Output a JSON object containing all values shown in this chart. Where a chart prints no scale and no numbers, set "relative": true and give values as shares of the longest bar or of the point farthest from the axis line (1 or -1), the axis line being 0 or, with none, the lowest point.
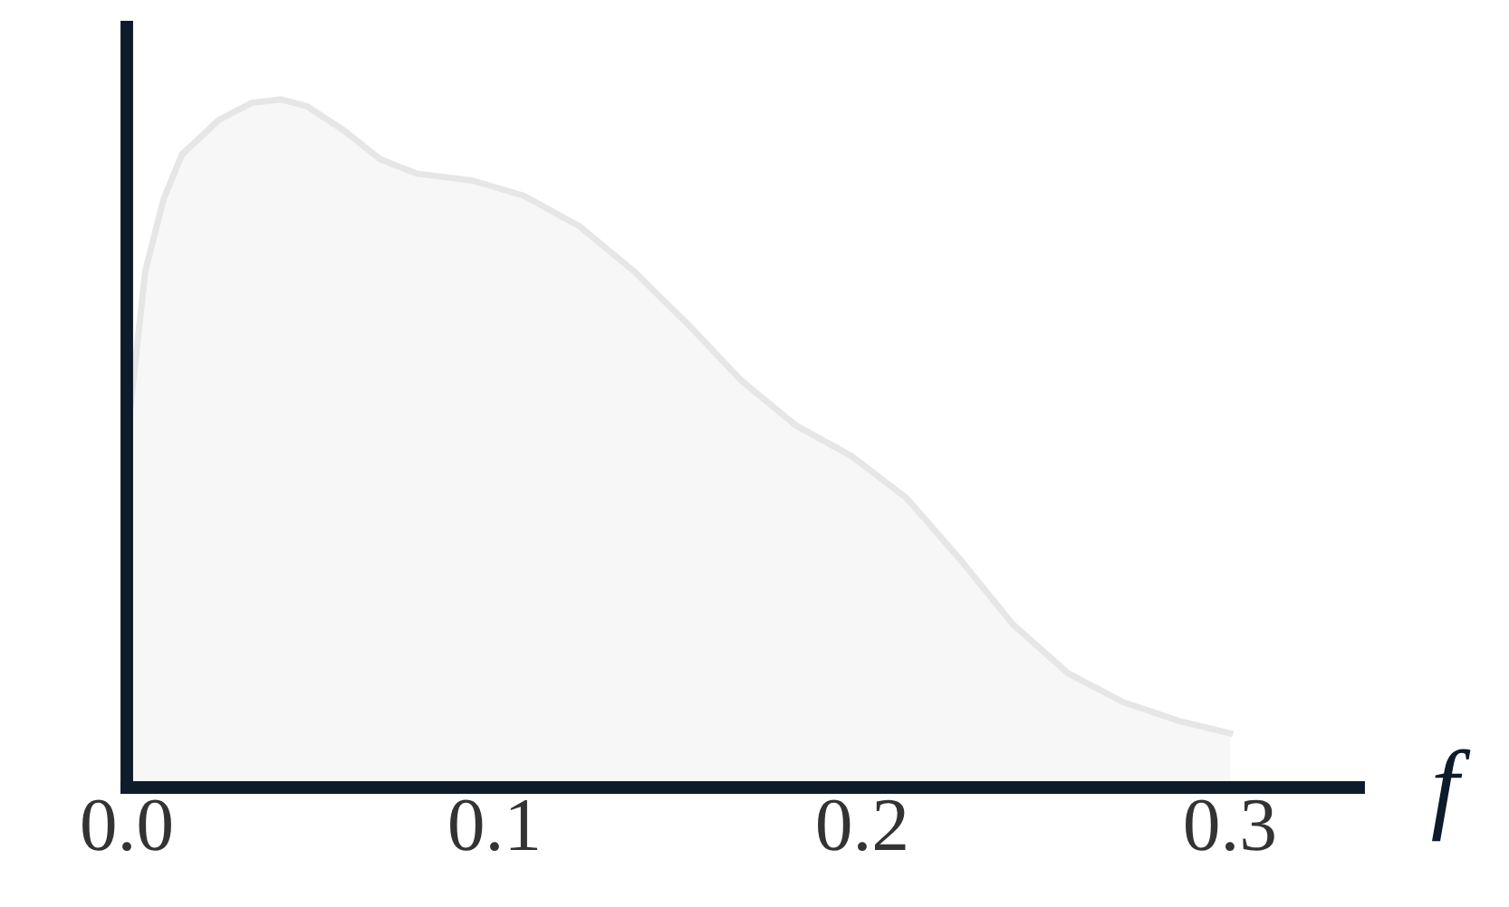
{
  "chart_data": {
    "type": "area",
    "relative": true,
    "xlabel": "f",
    "xlim": [
      0,
      0.335
    ],
    "xticks": [
      {
        "value": 0,
        "label": "0.0"
      },
      0.1,
      0.2,
      0.3
    ],
    "grid": false,
    "legend": false,
    "series": [
      {
        "color": "#f7f7f7",
        "x": [
          0.0,
          0.001,
          0.005,
          0.01,
          0.015,
          0.025,
          0.034,
          0.042,
          0.049,
          0.059,
          0.069,
          0.079,
          0.094,
          0.108,
          0.123,
          0.138,
          0.153,
          0.167,
          0.182,
          0.197,
          0.212,
          0.227,
          0.241,
          0.256,
          0.271,
          0.286,
          0.3
        ],
        "values": [
          0.5,
          0.553,
          0.75,
          0.855,
          0.92,
          0.97,
          0.995,
          1.0,
          0.99,
          0.955,
          0.913,
          0.892,
          0.882,
          0.86,
          0.816,
          0.75,
          0.671,
          0.592,
          0.526,
          0.482,
          0.421,
          0.329,
          0.237,
          0.166,
          0.124,
          0.097,
          0.079
        ]
      }
    ]
  }
}
